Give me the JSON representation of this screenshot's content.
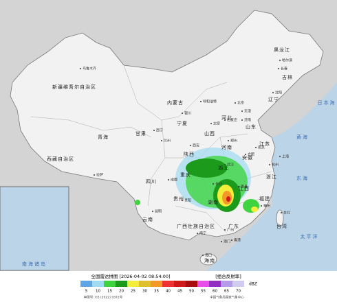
{
  "legend": {
    "title": "全国雷达拼图 [2026-04-02 08:54:00]",
    "product": "[组合反射率]",
    "unit": "dBZ",
    "items": [
      {
        "value": 5,
        "color": "#5ea6e6"
      },
      {
        "value": 10,
        "color": "#9fdcf2"
      },
      {
        "value": 15,
        "color": "#3fd43f"
      },
      {
        "value": 20,
        "color": "#1c9a1c"
      },
      {
        "value": 25,
        "color": "#f3ee3a"
      },
      {
        "value": 30,
        "color": "#e0bf2c"
      },
      {
        "value": 35,
        "color": "#f5982a"
      },
      {
        "value": 40,
        "color": "#f03232"
      },
      {
        "value": 45,
        "color": "#d01a1a"
      },
      {
        "value": 50,
        "color": "#a80c0c"
      },
      {
        "value": 55,
        "color": "#e84ee8"
      },
      {
        "value": 60,
        "color": "#9430c0"
      },
      {
        "value": 65,
        "color": "#b49ae8"
      },
      {
        "value": 70,
        "color": "#d0ccf0"
      }
    ]
  },
  "footer": {
    "approval": "审图号: GS (2022) 0372号",
    "source": "中国气象局国家气象中心"
  },
  "provinces": [
    "新疆维吾尔自治区",
    "西藏自治区",
    "青海",
    "甘肃",
    "内蒙古",
    "黑龙江",
    "吉林",
    "辽宁",
    "河北",
    "山西",
    "陕西",
    "宁夏",
    "四川",
    "重庆",
    "贵州",
    "云南",
    "广西壮族自治区",
    "广东",
    "湖南",
    "湖北",
    "河南",
    "山东",
    "江苏",
    "安徽",
    "浙江",
    "江西",
    "福建",
    "台湾",
    "海南"
  ],
  "cities": [
    "乌鲁木齐",
    "拉萨",
    "西宁",
    "兰州",
    "成都",
    "昆明",
    "贵阳",
    "南宁",
    "广州",
    "长沙",
    "武汉",
    "南昌",
    "福州",
    "杭州",
    "南京",
    "合肥",
    "郑州",
    "济南",
    "石家庄",
    "太原",
    "西安",
    "银川",
    "呼和浩特",
    "北京",
    "天津",
    "沈阳",
    "长春",
    "哈尔滨",
    "上海",
    "香港",
    "澳门",
    "海口",
    "台北"
  ],
  "seas": [
    "黄海",
    "东海",
    "太平洋",
    "日本海",
    "南海诸岛"
  ]
}
